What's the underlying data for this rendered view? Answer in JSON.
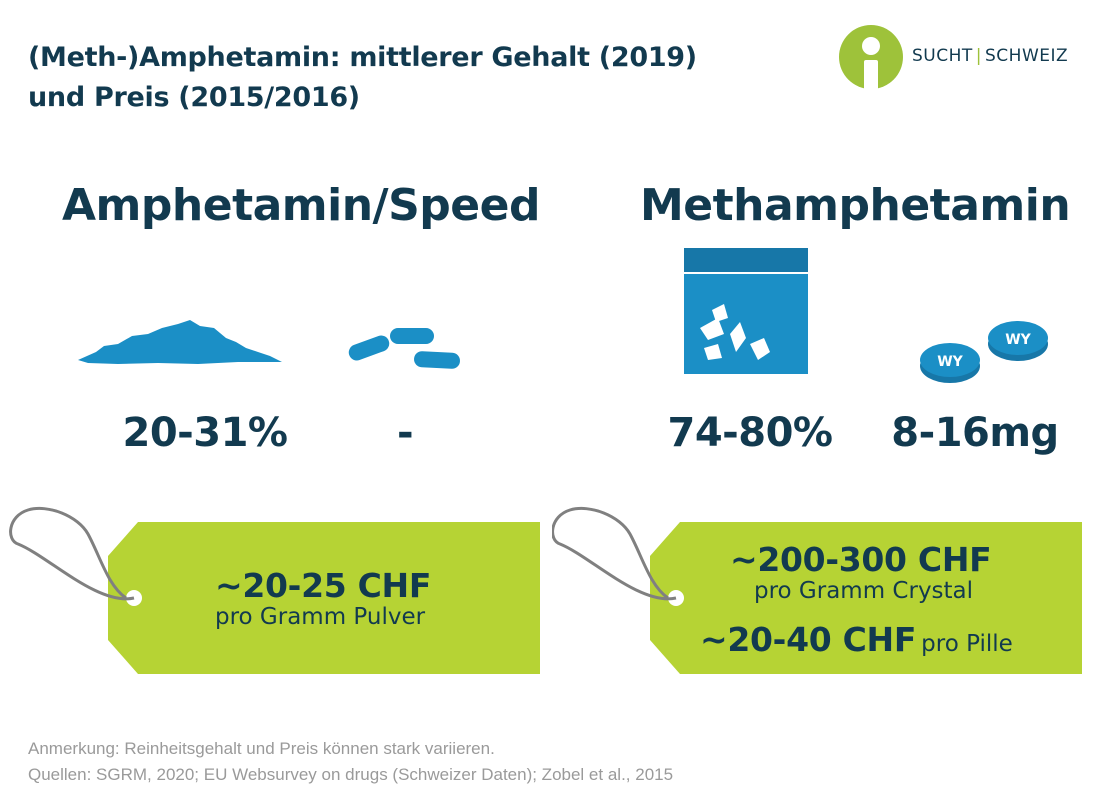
{
  "title": {
    "line1": "(Meth-)Amphetamin: mittlerer Gehalt (2019)",
    "line2": "und Preis (2015/2016)"
  },
  "logo": {
    "left": "SUCHT",
    "separator": "|",
    "right": "SCHWEIZ",
    "icon": "person-circle-icon"
  },
  "colors": {
    "navy": "#123a4f",
    "blue": "#1b8fc6",
    "lime": "#b6d334",
    "grey": "#9a9a9a"
  },
  "sections": {
    "amphetamin": {
      "heading": "Amphetamin/Speed",
      "powder_icon": "powder-pile-icon",
      "pill_icon": "capsules-icon",
      "purity": "20-31%",
      "dose": "-",
      "price": "~20-25 CHF",
      "price_unit": "pro Gramm Pulver"
    },
    "methamphetamin": {
      "heading": "Methamphetamin",
      "crystal_icon": "crystal-bag-icon",
      "pill_icon": "wy-pills-icon",
      "pill_imprint": "WY",
      "purity": "74-80%",
      "dose": "8-16mg",
      "price1": "~200-300 CHF",
      "price1_unit": "pro Gramm Crystal",
      "price2": "~20-40 CHF",
      "price2_unit": "pro Pille"
    }
  },
  "notes": {
    "remark": "Anmerkung: Reinheitsgehalt und Preis können stark variieren.",
    "sources": "Quellen: SGRM, 2020; EU Websurvey on drugs (Schweizer Daten); Zobel et al., 2015"
  }
}
